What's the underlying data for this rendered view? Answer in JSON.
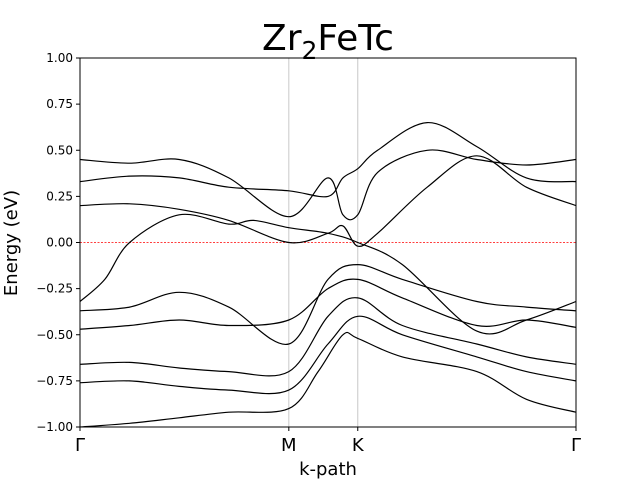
{
  "chart_data": {
    "type": "line",
    "title_main": "Zr",
    "title_sub": "2",
    "title_rest": "FeTc",
    "xlabel": "k-path",
    "ylabel": "Energy (eV)",
    "ylim": [
      -1.0,
      1.0
    ],
    "yticks": [
      {
        "value": 1.0,
        "label": "1.00"
      },
      {
        "value": 0.75,
        "label": "0.75"
      },
      {
        "value": 0.5,
        "label": "0.50"
      },
      {
        "value": 0.25,
        "label": "0.25"
      },
      {
        "value": 0.0,
        "label": "0.00"
      },
      {
        "value": -0.25,
        "label": "−0.25"
      },
      {
        "value": -0.5,
        "label": "−0.50"
      },
      {
        "value": -0.75,
        "label": "−0.75"
      },
      {
        "value": -1.0,
        "label": "−1.00"
      }
    ],
    "xlim": [
      0,
      1
    ],
    "kpoints": [
      {
        "label": "Γ",
        "x": 0.0
      },
      {
        "label": "M",
        "x": 0.421
      },
      {
        "label": "K",
        "x": 0.56
      },
      {
        "label": "Γ",
        "x": 1.0
      }
    ],
    "fermi_level": 0.0,
    "colors": {
      "band": "#000000",
      "fermi": "#ff0000",
      "kline": "#c8c8c8"
    },
    "series": [
      {
        "x": [
          0,
          0.1,
          0.2,
          0.3,
          0.421,
          0.48,
          0.53,
          0.56,
          0.65,
          0.8,
          0.9,
          1.0
        ],
        "y": [
          -1.0,
          -0.98,
          -0.95,
          -0.92,
          -0.9,
          -0.7,
          -0.5,
          -0.52,
          -0.62,
          -0.7,
          -0.85,
          -0.92
        ]
      },
      {
        "x": [
          0,
          0.1,
          0.2,
          0.3,
          0.421,
          0.5,
          0.56,
          0.65,
          0.8,
          0.9,
          1.0
        ],
        "y": [
          -0.76,
          -0.75,
          -0.78,
          -0.8,
          -0.8,
          -0.55,
          -0.4,
          -0.5,
          -0.62,
          -0.7,
          -0.75
        ]
      },
      {
        "x": [
          0,
          0.1,
          0.2,
          0.3,
          0.421,
          0.5,
          0.56,
          0.65,
          0.8,
          0.9,
          1.0
        ],
        "y": [
          -0.66,
          -0.65,
          -0.68,
          -0.7,
          -0.7,
          -0.4,
          -0.3,
          -0.45,
          -0.55,
          -0.62,
          -0.66
        ]
      },
      {
        "x": [
          0,
          0.1,
          0.2,
          0.3,
          0.421,
          0.5,
          0.56,
          0.65,
          0.8,
          0.9,
          1.0
        ],
        "y": [
          -0.47,
          -0.45,
          -0.42,
          -0.45,
          -0.42,
          -0.25,
          -0.2,
          -0.3,
          -0.45,
          -0.42,
          -0.46
        ]
      },
      {
        "x": [
          0,
          0.1,
          0.2,
          0.3,
          0.421,
          0.5,
          0.56,
          0.65,
          0.8,
          0.9,
          1.0
        ],
        "y": [
          -0.37,
          -0.35,
          -0.27,
          -0.35,
          -0.55,
          -0.2,
          -0.12,
          -0.2,
          -0.32,
          -0.35,
          -0.37
        ]
      },
      {
        "x": [
          0,
          0.05,
          0.1,
          0.2,
          0.3,
          0.35,
          0.421,
          0.5,
          0.56,
          0.65,
          0.8,
          0.9,
          1.0
        ],
        "y": [
          -0.32,
          -0.2,
          0.0,
          0.15,
          0.1,
          0.12,
          0.08,
          0.05,
          0.0,
          -0.12,
          -0.48,
          -0.42,
          -0.32
        ]
      },
      {
        "x": [
          0,
          0.1,
          0.2,
          0.3,
          0.421,
          0.5,
          0.53,
          0.56,
          0.6,
          0.7,
          0.8,
          0.9,
          1.0
        ],
        "y": [
          0.2,
          0.21,
          0.18,
          0.12,
          0.0,
          0.05,
          0.09,
          -0.02,
          0.05,
          0.3,
          0.47,
          0.3,
          0.2
        ]
      },
      {
        "x": [
          0,
          0.1,
          0.2,
          0.3,
          0.421,
          0.5,
          0.53,
          0.56,
          0.6,
          0.7,
          0.8,
          0.9,
          1.0
        ],
        "y": [
          0.33,
          0.36,
          0.35,
          0.3,
          0.28,
          0.25,
          0.35,
          0.4,
          0.5,
          0.65,
          0.52,
          0.35,
          0.33
        ]
      },
      {
        "x": [
          0,
          0.1,
          0.2,
          0.3,
          0.421,
          0.5,
          0.53,
          0.56,
          0.6,
          0.7,
          0.8,
          0.9,
          1.0
        ],
        "y": [
          0.45,
          0.43,
          0.45,
          0.35,
          0.14,
          0.35,
          0.15,
          0.15,
          0.38,
          0.5,
          0.45,
          0.42,
          0.45
        ]
      }
    ]
  }
}
